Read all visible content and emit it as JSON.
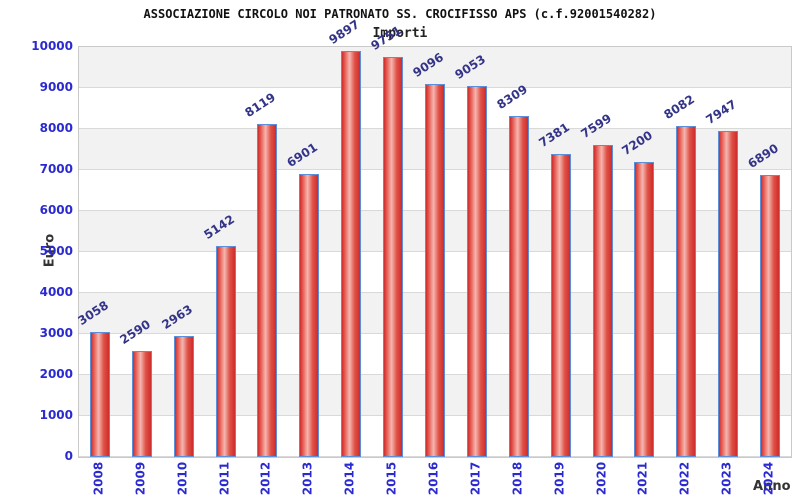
{
  "header": {
    "title": "ASSOCIAZIONE CIRCOLO NOI PATRONATO SS. CROCIFISSO APS (c.f.92001540282)",
    "legend_label": "Importi"
  },
  "chart_data": {
    "type": "bar",
    "title": "ASSOCIAZIONE CIRCOLO NOI PATRONATO SS. CROCIFISSO APS (c.f.92001540282)",
    "legend": "Importi",
    "xlabel": "Anno",
    "ylabel": "Euro",
    "categories": [
      "2008",
      "2009",
      "2010",
      "2011",
      "2012",
      "2013",
      "2014",
      "2015",
      "2016",
      "2017",
      "2018",
      "2019",
      "2020",
      "2021",
      "2022",
      "2023",
      "2024"
    ],
    "values": [
      3058,
      2590,
      2963,
      5142,
      8119,
      6901,
      9897,
      9751,
      9096,
      9053,
      8309,
      7381,
      7599,
      7200,
      8082,
      7947,
      6890
    ],
    "ylim": [
      0,
      10000
    ],
    "yticks": [
      "0",
      "1000",
      "2000",
      "3000",
      "4000",
      "5000",
      "6000",
      "7000",
      "8000",
      "9000",
      "10000"
    ],
    "grid": "horizontal alternating bands, gridline every 1000",
    "legend_position": "top-center",
    "colors": {
      "bar_edge": "#cf2b2b",
      "bar_center": "#f5b7b1",
      "bar_border": "#5c8fd9",
      "value_label": "#333388",
      "tick_label": "#2a2ad0",
      "axis_title": "#333333",
      "band_gray": "#f2f2f2",
      "gridline": "#d9d9d9"
    }
  }
}
